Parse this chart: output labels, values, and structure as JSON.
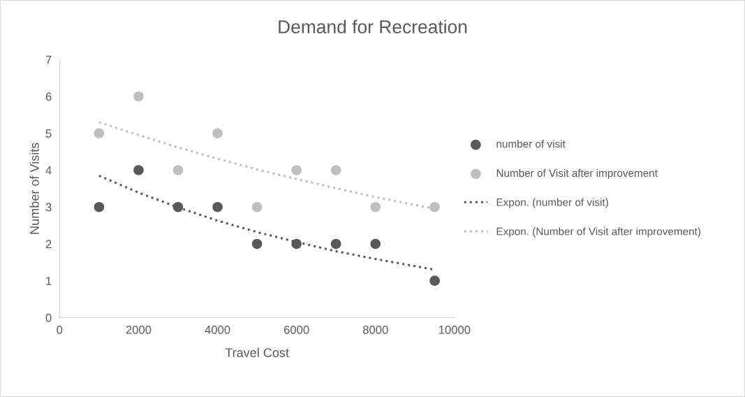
{
  "chart_data": {
    "type": "scatter",
    "title": "Demand for Recreation",
    "xlabel": "Travel Cost",
    "ylabel": "Number of Visits",
    "xlim": [
      0,
      10000
    ],
    "xticks": [
      0,
      2000,
      4000,
      6000,
      8000,
      10000
    ],
    "ylim": [
      0,
      7
    ],
    "yticks": [
      0,
      1,
      2,
      3,
      4,
      5,
      6,
      7
    ],
    "grid": false,
    "legend": "right",
    "series": [
      {
        "name": "number of visit",
        "marker": "circle",
        "color": "#595959",
        "x": [
          1000,
          2000,
          3000,
          4000,
          5000,
          6000,
          7000,
          8000,
          9500
        ],
        "values": [
          3,
          4,
          3,
          3,
          2,
          2,
          2,
          2,
          1
        ]
      },
      {
        "name": "Number of Visit after improvement",
        "marker": "circle",
        "color": "#bfbfbf",
        "x": [
          1000,
          2000,
          3000,
          4000,
          5000,
          6000,
          7000,
          8000,
          9500
        ],
        "values": [
          5,
          6,
          4,
          5,
          3,
          4,
          4,
          3,
          3
        ]
      },
      {
        "name": "Expon. (number of visit)",
        "type": "line",
        "line_style": "dotted",
        "color": "#595959",
        "x": [
          1000,
          2000,
          3000,
          4000,
          5000,
          6000,
          7000,
          8000,
          9500
        ],
        "values": [
          3.85,
          3.39,
          2.99,
          2.63,
          2.32,
          2.05,
          1.8,
          1.59,
          1.3
        ]
      },
      {
        "name": "Expon. (Number of Visit after improvement)",
        "type": "line",
        "line_style": "dotted",
        "color": "#bfbfbf",
        "x": [
          1000,
          2000,
          3000,
          4000,
          5000,
          6000,
          7000,
          8000,
          9500
        ],
        "values": [
          5.3,
          4.95,
          4.62,
          4.31,
          4.02,
          3.76,
          3.51,
          3.27,
          2.95
        ]
      }
    ]
  }
}
